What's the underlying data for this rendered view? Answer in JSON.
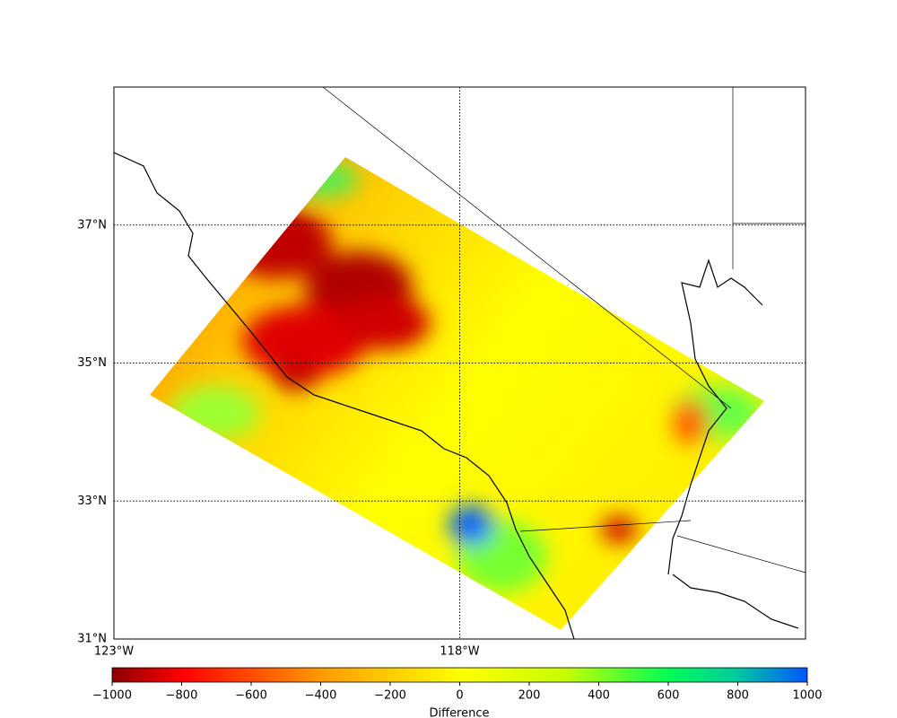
{
  "map": {
    "lonlim": [
      -123,
      -113
    ],
    "latlim": [
      31,
      39
    ],
    "lon_ticks": [
      {
        "value": -123,
        "label": "123°W"
      },
      {
        "value": -118,
        "label": "118°W"
      }
    ],
    "lat_ticks": [
      {
        "value": 31,
        "label": "31°N"
      },
      {
        "value": 33,
        "label": "33°N"
      },
      {
        "value": 35,
        "label": "35°N"
      },
      {
        "value": 37,
        "label": "37°N"
      }
    ]
  },
  "colorbar": {
    "label": "Difference",
    "lim": [
      -1000,
      1000
    ],
    "ticks": [
      {
        "value": -1000,
        "label": "−1000"
      },
      {
        "value": -800,
        "label": "−800"
      },
      {
        "value": -600,
        "label": "−600"
      },
      {
        "value": -400,
        "label": "−400"
      },
      {
        "value": -200,
        "label": "−200"
      },
      0,
      200,
      400,
      600,
      800,
      1000
    ]
  }
}
